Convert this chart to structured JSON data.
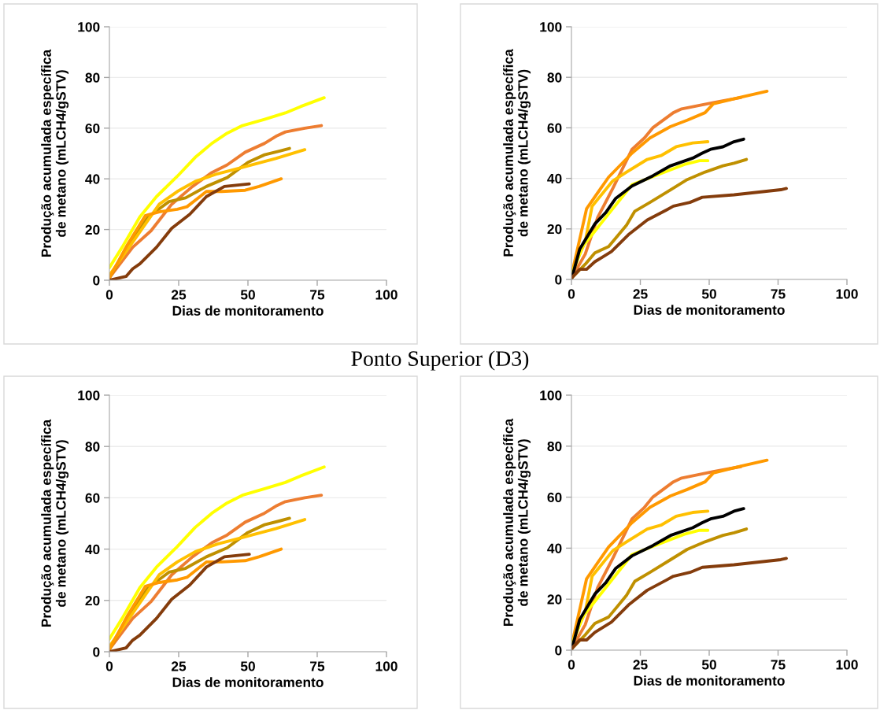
{
  "chart_data": [
    {
      "type": "line",
      "xlabel": "Dias de monitoramento",
      "ylabel": "Produção acumulada específica\nde metano (mLCH4/gSTV)",
      "xlim": [
        0,
        100
      ],
      "ylim": [
        0,
        100
      ],
      "xticks": [
        0,
        25,
        50,
        75,
        100
      ],
      "yticks": [
        0,
        20,
        40,
        60,
        80,
        100
      ],
      "grid": "y",
      "line_style": "solid",
      "marker": "none",
      "series": [
        {
          "color": "#ffff00",
          "x": [
            0,
            4.6,
            11,
            17,
            24.5,
            31,
            37,
            42.5,
            48,
            56,
            63.5,
            69,
            77.5
          ],
          "values": [
            5,
            13,
            25,
            33,
            41,
            48.5,
            54,
            58,
            61,
            63.5,
            66,
            68.5,
            72
          ]
        },
        {
          "color": "#ed7d31",
          "x": [
            0,
            8.4,
            15,
            22.5,
            30,
            37,
            42.5,
            49,
            56,
            60.5,
            63.5,
            70.5,
            76.5
          ],
          "values": [
            1,
            13,
            19.5,
            30,
            37,
            42.5,
            45.5,
            50.5,
            54,
            57,
            58.5,
            60,
            61
          ]
        },
        {
          "color": "#bf9000",
          "x": [
            0,
            6.5,
            14,
            21.5,
            27.5,
            35,
            42.5,
            50,
            56,
            61.5,
            65
          ],
          "values": [
            1,
            13,
            25,
            31,
            32.5,
            37,
            40.5,
            46.5,
            49.5,
            51,
            52
          ]
        },
        {
          "color": "#ffc000",
          "x": [
            0,
            8.4,
            18,
            24.5,
            31,
            39,
            48,
            60,
            70.5
          ],
          "values": [
            2,
            15,
            30,
            35,
            39,
            42,
            44.5,
            48,
            51.5
          ]
        },
        {
          "color": "#ff9900",
          "x": [
            0,
            6.5,
            13,
            18,
            24.5,
            28,
            35,
            40.5,
            49,
            54,
            62
          ],
          "values": [
            1,
            14,
            25.5,
            27,
            28,
            29,
            35,
            35,
            35.5,
            37,
            40
          ]
        },
        {
          "color": "#843c0c",
          "x": [
            0,
            6,
            8.4,
            11,
            17,
            22.5,
            29,
            35,
            41.5,
            50.5
          ],
          "values": [
            0,
            1.5,
            4.5,
            6.5,
            13,
            20.5,
            26,
            33,
            37,
            38
          ]
        }
      ]
    },
    {
      "type": "line",
      "xlabel": "Dias de monitoramento",
      "ylabel": "Produção acumulada específica\nde metano (mLCH4/gSTV)",
      "xlim": [
        0,
        100
      ],
      "ylim": [
        0,
        100
      ],
      "xticks": [
        0,
        25,
        50,
        75,
        100
      ],
      "yticks": [
        0,
        20,
        40,
        60,
        80,
        100
      ],
      "grid": "y",
      "line_style": "solid",
      "marker": "none",
      "series": [
        {
          "color": "#ed7d31",
          "x": [
            0,
            5,
            9.5,
            15,
            22,
            26.5,
            29.5,
            37,
            40,
            51.5,
            61.5
          ],
          "values": [
            0.5,
            10,
            24.5,
            36,
            51.5,
            56,
            60,
            66,
            67.5,
            70,
            72
          ]
        },
        {
          "color": "#ff9900",
          "x": [
            0,
            5.5,
            13.5,
            22,
            28.5,
            36,
            42,
            48.5,
            51.5,
            61,
            71
          ],
          "values": [
            1.5,
            28,
            40.5,
            50,
            56,
            60.5,
            63,
            66,
            69.5,
            72,
            74.5
          ]
        },
        {
          "color": "#ffc000",
          "x": [
            0,
            5,
            7.5,
            15,
            20,
            27.5,
            32.5,
            38,
            44,
            49.5
          ],
          "values": [
            2.5,
            15,
            29,
            39,
            42.5,
            47.5,
            49,
            52.5,
            54,
            54.5
          ]
        },
        {
          "color": "#ffff00",
          "x": [
            0,
            4,
            9.5,
            15,
            22,
            31.5,
            41,
            46.5,
            49.5
          ],
          "values": [
            1.5,
            13,
            20.5,
            28,
            37.5,
            41.5,
            45.5,
            47,
            47
          ]
        },
        {
          "color": "#000000",
          "x": [
            0,
            3,
            8.5,
            12.5,
            16,
            22,
            29.5,
            36,
            44,
            47.5,
            50.5,
            55,
            59,
            62.5
          ],
          "values": [
            0,
            12,
            22,
            26.5,
            32,
            37,
            41,
            45,
            48,
            50,
            51.5,
            52.5,
            54.5,
            55.5
          ]
        },
        {
          "color": "#bf9000",
          "x": [
            0,
            5,
            8.5,
            13.5,
            20,
            23,
            28.5,
            36,
            42,
            48.5,
            55,
            59,
            63.5
          ],
          "values": [
            0.5,
            6,
            10.5,
            13,
            21.5,
            27,
            30.5,
            35.5,
            39.5,
            42.5,
            45,
            46,
            47.5
          ]
        },
        {
          "color": "#843c0c",
          "x": [
            0,
            3,
            5.5,
            8.5,
            14.5,
            21,
            27.5,
            34.5,
            37,
            43,
            47.5,
            59,
            76,
            78
          ],
          "values": [
            0.5,
            4,
            4,
            7,
            11,
            18,
            23.5,
            27.5,
            29,
            30.5,
            32.5,
            33.5,
            35.5,
            36
          ]
        }
      ]
    },
    {
      "type": "line",
      "title": "Ponto Superior (D3)",
      "xlabel": "Dias de monitoramento",
      "ylabel": "Produção acumulada específica\nde metano (mLCH4/gSTV)",
      "xlim": [
        0,
        100
      ],
      "ylim": [
        0,
        100
      ],
      "xticks": [
        0,
        25,
        50,
        75,
        100
      ],
      "yticks": [
        0,
        20,
        40,
        60,
        80,
        100
      ],
      "grid": "y",
      "line_style": "solid",
      "marker": "none",
      "series": [
        {
          "color": "#ffff00",
          "x": [
            0,
            4.6,
            11,
            17,
            24.5,
            31,
            37,
            42.5,
            48,
            56,
            63.5,
            69,
            77.5
          ],
          "values": [
            5,
            13,
            25,
            33,
            41,
            48.5,
            54,
            58,
            61,
            63.5,
            66,
            68.5,
            72
          ]
        },
        {
          "color": "#ed7d31",
          "x": [
            0,
            8.4,
            15,
            22.5,
            30,
            37,
            42.5,
            49,
            56,
            60.5,
            63.5,
            70.5,
            76.5
          ],
          "values": [
            1,
            13,
            19.5,
            30,
            37,
            42.5,
            45.5,
            50.5,
            54,
            57,
            58.5,
            60,
            61
          ]
        },
        {
          "color": "#bf9000",
          "x": [
            0,
            6.5,
            14,
            21.5,
            27.5,
            35,
            42.5,
            50,
            56,
            61.5,
            65
          ],
          "values": [
            1,
            13,
            25,
            31,
            32.5,
            37,
            40.5,
            46.5,
            49.5,
            51,
            52
          ]
        },
        {
          "color": "#ffc000",
          "x": [
            0,
            8.4,
            18,
            24.5,
            31,
            39,
            48,
            60,
            70.5
          ],
          "values": [
            2,
            15,
            30,
            35,
            39,
            42,
            44.5,
            48,
            51.5
          ]
        },
        {
          "color": "#ff9900",
          "x": [
            0,
            6.5,
            13,
            18,
            24.5,
            28,
            35,
            40.5,
            49,
            54,
            62
          ],
          "values": [
            1,
            14,
            25.5,
            27,
            28,
            29,
            35,
            35,
            35.5,
            37,
            40
          ]
        },
        {
          "color": "#843c0c",
          "x": [
            0,
            6,
            8.4,
            11,
            17,
            22.5,
            29,
            35,
            41.5,
            50.5
          ],
          "values": [
            0,
            1.5,
            4.5,
            6.5,
            13,
            20.5,
            26,
            33,
            37,
            38
          ]
        }
      ]
    },
    {
      "type": "line",
      "xlabel": "Dias de monitoramento",
      "ylabel": "Produção acumulada específica\nde metano (mLCH4/gSTV)",
      "xlim": [
        0,
        100
      ],
      "ylim": [
        0,
        100
      ],
      "xticks": [
        0,
        25,
        50,
        75,
        100
      ],
      "yticks": [
        0,
        20,
        40,
        60,
        80,
        100
      ],
      "grid": "y",
      "line_style": "solid",
      "marker": "none",
      "series": [
        {
          "color": "#ed7d31",
          "x": [
            0,
            5,
            9.5,
            15,
            22,
            26.5,
            29.5,
            37,
            40,
            51.5,
            61.5
          ],
          "values": [
            0.5,
            10,
            24.5,
            36,
            51.5,
            56,
            60,
            66,
            67.5,
            70,
            72
          ]
        },
        {
          "color": "#ff9900",
          "x": [
            0,
            5.5,
            13.5,
            22,
            28.5,
            36,
            42,
            48.5,
            51.5,
            61,
            71
          ],
          "values": [
            1.5,
            28,
            40.5,
            50,
            56,
            60.5,
            63,
            66,
            69.5,
            72,
            74.5
          ]
        },
        {
          "color": "#ffc000",
          "x": [
            0,
            5,
            7.5,
            15,
            20,
            27.5,
            32.5,
            38,
            44,
            49.5
          ],
          "values": [
            2.5,
            15,
            29,
            39,
            42.5,
            47.5,
            49,
            52.5,
            54,
            54.5
          ]
        },
        {
          "color": "#ffff00",
          "x": [
            0,
            4,
            9.5,
            15,
            22,
            31.5,
            41,
            46.5,
            49.5
          ],
          "values": [
            1.5,
            13,
            20.5,
            28,
            37.5,
            41.5,
            45.5,
            47,
            47
          ]
        },
        {
          "color": "#000000",
          "x": [
            0,
            3,
            8.5,
            12.5,
            16,
            22,
            29.5,
            36,
            44,
            47.5,
            50.5,
            55,
            59,
            62.5
          ],
          "values": [
            0,
            12,
            22,
            26.5,
            32,
            37,
            41,
            45,
            48,
            50,
            51.5,
            52.5,
            54.5,
            55.5
          ]
        },
        {
          "color": "#bf9000",
          "x": [
            0,
            5,
            8.5,
            13.5,
            20,
            23,
            28.5,
            36,
            42,
            48.5,
            55,
            59,
            63.5
          ],
          "values": [
            0.5,
            6,
            10.5,
            13,
            21.5,
            27,
            30.5,
            35.5,
            39.5,
            42.5,
            45,
            46,
            47.5
          ]
        },
        {
          "color": "#843c0c",
          "x": [
            0,
            3,
            5.5,
            8.5,
            14.5,
            21,
            27.5,
            34.5,
            37,
            43,
            47.5,
            59,
            76,
            78
          ],
          "values": [
            0.5,
            4,
            4,
            7,
            11,
            18,
            23.5,
            27.5,
            29,
            30.5,
            32.5,
            33.5,
            35.5,
            36
          ]
        }
      ]
    }
  ]
}
